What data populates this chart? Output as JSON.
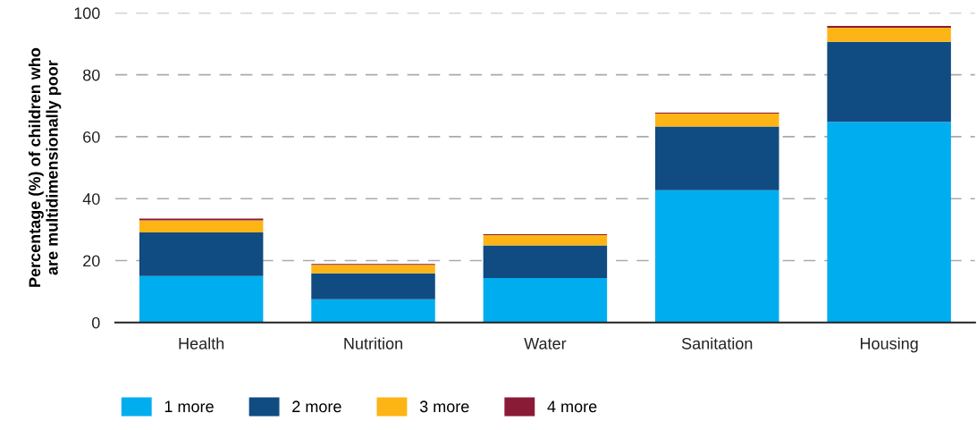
{
  "chart_data": {
    "type": "bar",
    "stacked": true,
    "ylabel": "Percentage (%) of children who\nare multidimensionally poor",
    "categories": [
      "Health",
      "Nutrition",
      "Water",
      "Sanitation",
      "Housing"
    ],
    "series": [
      {
        "name": "1 more",
        "color": "#00adee",
        "values": [
          15.0,
          7.5,
          14.4,
          42.7,
          64.8
        ]
      },
      {
        "name": "2 more",
        "color": "#104b82",
        "values": [
          14.1,
          8.4,
          10.5,
          20.6,
          25.9
        ]
      },
      {
        "name": "3 more",
        "color": "#fdb515",
        "values": [
          3.9,
          2.7,
          3.3,
          4.2,
          4.5
        ]
      },
      {
        "name": "4 more",
        "color": "#8b1a36",
        "values": [
          0.6,
          0.3,
          0.3,
          0.3,
          0.6
        ]
      }
    ],
    "ylim": [
      0,
      100
    ],
    "yticks": [
      0,
      20,
      40,
      60,
      80,
      100
    ],
    "grid": "y",
    "legend": "bottom left"
  }
}
